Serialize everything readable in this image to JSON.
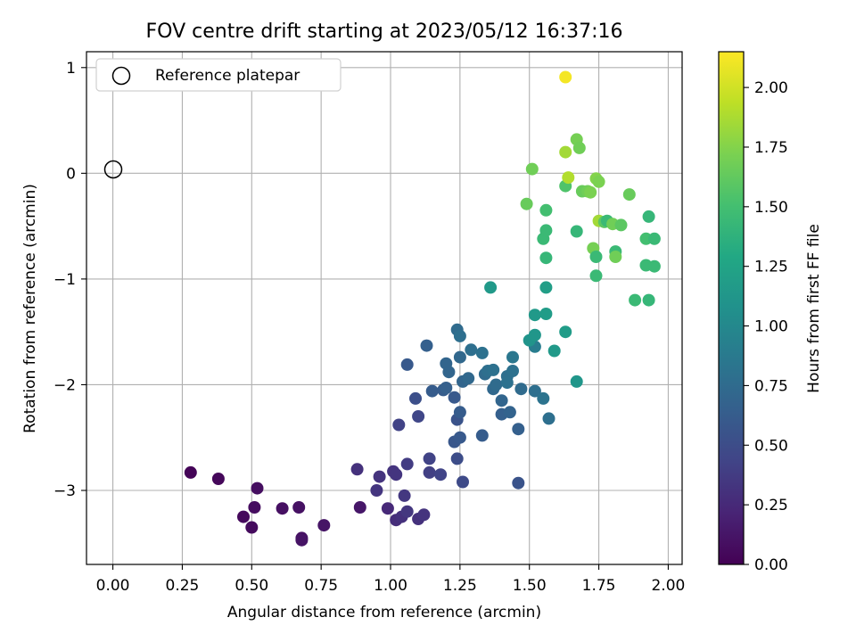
{
  "chart_data": {
    "type": "scatter",
    "title": "FOV centre drift starting at 2023/05/12 16:37:16",
    "xlabel": "Angular distance from reference (arcmin)",
    "ylabel": "Rotation from reference (arcmin)",
    "colorbar_label": "Hours from first FF file",
    "xlim": [
      -0.095,
      2.05
    ],
    "ylim": [
      -3.7,
      1.15
    ],
    "clim": [
      0.0,
      2.15
    ],
    "xticks": [
      0.0,
      0.25,
      0.5,
      0.75,
      1.0,
      1.25,
      1.5,
      1.75,
      2.0
    ],
    "xtick_labels": [
      "0.00",
      "0.25",
      "0.50",
      "0.75",
      "1.00",
      "1.25",
      "1.50",
      "1.75",
      "2.00"
    ],
    "yticks": [
      1,
      0,
      -1,
      -2,
      -3
    ],
    "ytick_labels": [
      "1",
      "0",
      "−1",
      "−2",
      "−3"
    ],
    "cticks": [
      0.0,
      0.25,
      0.5,
      0.75,
      1.0,
      1.25,
      1.5,
      1.75,
      2.0
    ],
    "ctick_labels": [
      "0.00",
      "0.25",
      "0.50",
      "0.75",
      "1.00",
      "1.25",
      "1.50",
      "1.75",
      "2.00"
    ],
    "grid": true,
    "colormap": "viridis",
    "legend": {
      "label": "Reference platepar",
      "location": "top-left"
    },
    "reference_point": [
      0.0,
      0.0
    ],
    "points": [
      [
        0.28,
        -2.83,
        0.02
      ],
      [
        0.38,
        -2.89,
        0.04
      ],
      [
        0.47,
        -3.25,
        0.05
      ],
      [
        0.5,
        -3.35,
        0.06
      ],
      [
        0.51,
        -3.16,
        0.07
      ],
      [
        0.52,
        -2.98,
        0.08
      ],
      [
        0.61,
        -3.17,
        0.09
      ],
      [
        0.67,
        -3.16,
        0.1
      ],
      [
        0.68,
        -3.45,
        0.1
      ],
      [
        0.68,
        -3.47,
        0.11
      ],
      [
        0.76,
        -3.33,
        0.12
      ],
      [
        0.89,
        -3.16,
        0.13
      ],
      [
        0.88,
        -2.8,
        0.3
      ],
      [
        0.96,
        -2.87,
        0.32
      ],
      [
        0.95,
        -3.0,
        0.33
      ],
      [
        0.99,
        -3.17,
        0.25
      ],
      [
        1.01,
        -2.82,
        0.32
      ],
      [
        1.02,
        -2.85,
        0.33
      ],
      [
        1.02,
        -3.28,
        0.28
      ],
      [
        1.04,
        -3.25,
        0.3
      ],
      [
        1.05,
        -3.05,
        0.35
      ],
      [
        1.06,
        -3.2,
        0.34
      ],
      [
        1.06,
        -2.75,
        0.38
      ],
      [
        1.1,
        -3.27,
        0.3
      ],
      [
        1.12,
        -3.23,
        0.32
      ],
      [
        1.14,
        -2.83,
        0.4
      ],
      [
        1.14,
        -2.7,
        0.42
      ],
      [
        1.18,
        -2.85,
        0.43
      ],
      [
        1.26,
        -2.92,
        0.48
      ],
      [
        1.24,
        -2.7,
        0.5
      ],
      [
        1.03,
        -2.38,
        0.42
      ],
      [
        1.1,
        -2.3,
        0.45
      ],
      [
        1.09,
        -2.13,
        0.52
      ],
      [
        1.06,
        -1.81,
        0.6
      ],
      [
        1.13,
        -1.63,
        0.65
      ],
      [
        1.15,
        -2.06,
        0.62
      ],
      [
        1.19,
        -2.05,
        0.62
      ],
      [
        1.2,
        -2.03,
        0.65
      ],
      [
        1.2,
        -1.8,
        0.7
      ],
      [
        1.21,
        -1.88,
        0.7
      ],
      [
        1.23,
        -2.12,
        0.6
      ],
      [
        1.24,
        -2.33,
        0.55
      ],
      [
        1.23,
        -2.54,
        0.58
      ],
      [
        1.25,
        -2.5,
        0.6
      ],
      [
        1.25,
        -2.26,
        0.62
      ],
      [
        1.24,
        -1.48,
        0.75
      ],
      [
        1.25,
        -1.54,
        0.78
      ],
      [
        1.25,
        -1.74,
        0.72
      ],
      [
        1.26,
        -1.97,
        0.7
      ],
      [
        1.28,
        -1.94,
        0.72
      ],
      [
        1.29,
        -1.67,
        0.78
      ],
      [
        1.33,
        -2.48,
        0.62
      ],
      [
        1.33,
        -1.7,
        0.8
      ],
      [
        1.34,
        -1.9,
        0.75
      ],
      [
        1.35,
        -1.87,
        0.78
      ],
      [
        1.37,
        -2.04,
        0.72
      ],
      [
        1.37,
        -1.86,
        0.8
      ],
      [
        1.38,
        -2.0,
        0.75
      ],
      [
        1.4,
        -2.15,
        0.7
      ],
      [
        1.4,
        -2.28,
        0.65
      ],
      [
        1.42,
        -1.92,
        0.78
      ],
      [
        1.42,
        -1.98,
        0.8
      ],
      [
        1.43,
        -2.26,
        0.68
      ],
      [
        1.44,
        -1.74,
        0.85
      ],
      [
        1.44,
        -1.87,
        0.8
      ],
      [
        1.46,
        -2.42,
        0.65
      ],
      [
        1.46,
        -2.93,
        0.55
      ],
      [
        1.47,
        -2.04,
        0.75
      ],
      [
        1.52,
        -2.06,
        0.78
      ],
      [
        1.52,
        -1.64,
        0.9
      ],
      [
        1.55,
        -2.13,
        0.82
      ],
      [
        1.57,
        -2.32,
        0.78
      ],
      [
        1.36,
        -1.08,
        1.15
      ],
      [
        1.5,
        -1.58,
        1.1
      ],
      [
        1.52,
        -1.53,
        1.12
      ],
      [
        1.52,
        -1.34,
        1.15
      ],
      [
        1.56,
        -1.33,
        1.18
      ],
      [
        1.56,
        -1.08,
        1.2
      ],
      [
        1.59,
        -1.68,
        1.15
      ],
      [
        1.63,
        -1.5,
        1.18
      ],
      [
        1.67,
        -1.97,
        1.12
      ],
      [
        1.49,
        -0.29,
        1.65
      ],
      [
        1.51,
        0.04,
        1.68
      ],
      [
        1.55,
        -0.62,
        1.45
      ],
      [
        1.56,
        -0.35,
        1.5
      ],
      [
        1.56,
        -0.54,
        1.45
      ],
      [
        1.56,
        -0.8,
        1.42
      ],
      [
        1.63,
        -0.12,
        1.55
      ],
      [
        1.63,
        0.2,
        1.85
      ],
      [
        1.64,
        -0.04,
        1.9
      ],
      [
        1.63,
        0.91,
        2.12
      ],
      [
        1.67,
        0.32,
        1.7
      ],
      [
        1.68,
        0.24,
        1.68
      ],
      [
        1.67,
        -0.55,
        1.42
      ],
      [
        1.69,
        -0.17,
        1.65
      ],
      [
        1.71,
        -0.17,
        1.68
      ],
      [
        1.72,
        -0.18,
        1.72
      ],
      [
        1.73,
        -0.71,
        1.7
      ],
      [
        1.74,
        -0.79,
        1.45
      ],
      [
        1.74,
        -0.97,
        1.45
      ],
      [
        1.74,
        -0.05,
        1.75
      ],
      [
        1.75,
        -0.08,
        1.72
      ],
      [
        1.75,
        -0.45,
        1.85
      ],
      [
        1.77,
        -0.46,
        1.6
      ],
      [
        1.78,
        -0.45,
        1.45
      ],
      [
        1.8,
        -0.48,
        1.68
      ],
      [
        1.81,
        -0.74,
        1.45
      ],
      [
        1.81,
        -0.79,
        1.68
      ],
      [
        1.83,
        -0.49,
        1.6
      ],
      [
        1.86,
        -0.2,
        1.65
      ],
      [
        1.88,
        -1.2,
        1.45
      ],
      [
        1.92,
        -0.62,
        1.5
      ],
      [
        1.92,
        -0.87,
        1.45
      ],
      [
        1.93,
        -0.41,
        1.42
      ],
      [
        1.93,
        -1.2,
        1.42
      ],
      [
        1.95,
        -0.88,
        1.45
      ],
      [
        1.95,
        -0.62,
        1.45
      ]
    ]
  }
}
